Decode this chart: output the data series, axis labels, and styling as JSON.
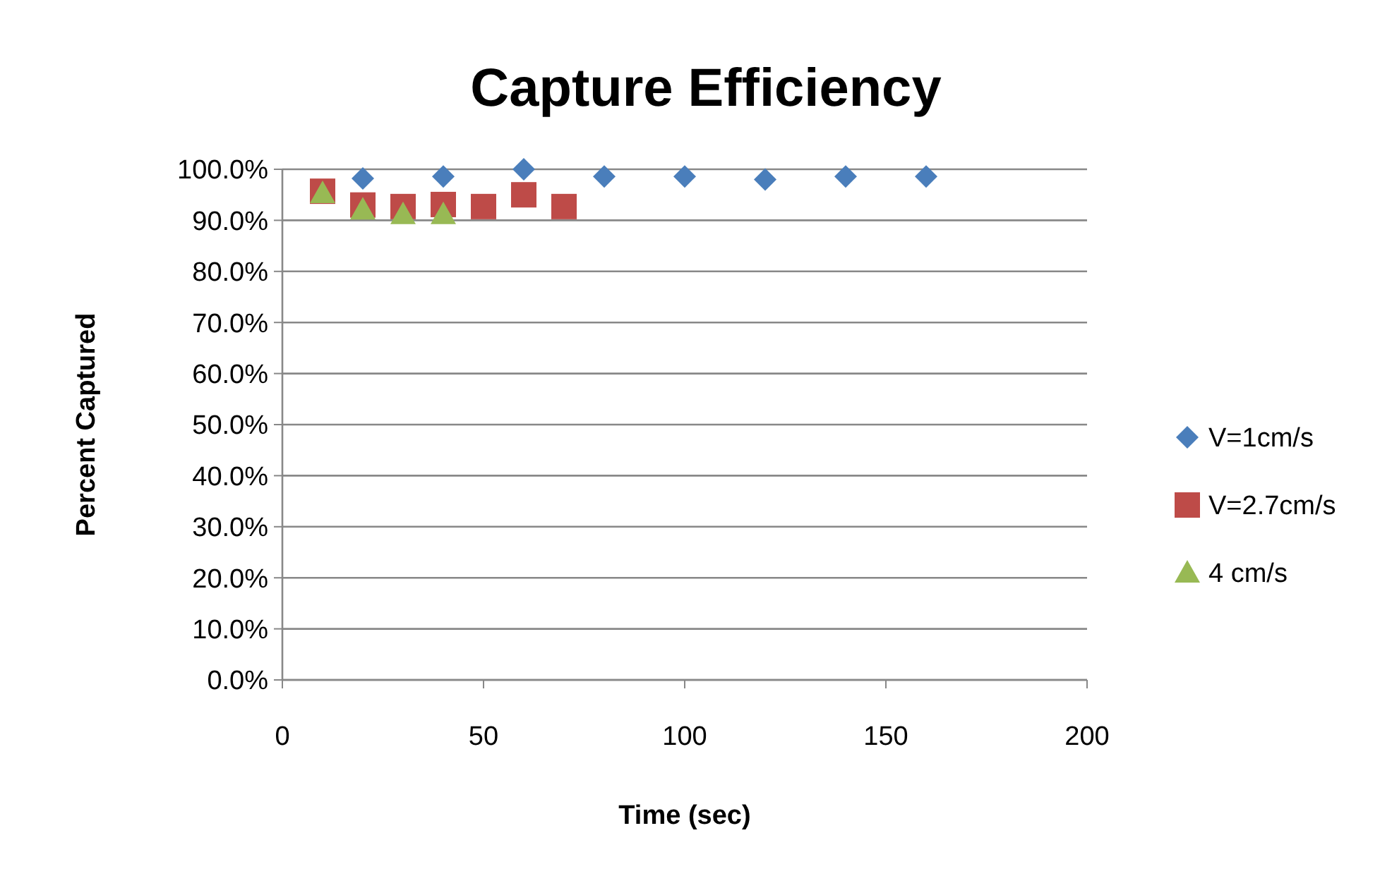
{
  "chart_data": {
    "type": "scatter",
    "title": "Capture Efficiency",
    "xlabel": "Time (sec)",
    "ylabel": "Percent Captured",
    "xlim": [
      0,
      200
    ],
    "xticks": [
      0,
      50,
      100,
      150,
      200
    ],
    "ylim": [
      0,
      100
    ],
    "yticks": [
      {
        "value": 0,
        "label": "0.0%"
      },
      {
        "value": 10,
        "label": "10.0%"
      },
      {
        "value": 20,
        "label": "20.0%"
      },
      {
        "value": 30,
        "label": "30.0%"
      },
      {
        "value": 40,
        "label": "40.0%"
      },
      {
        "value": 50,
        "label": "50.0%"
      },
      {
        "value": 60,
        "label": "60.0%"
      },
      {
        "value": 70,
        "label": "70.0%"
      },
      {
        "value": 80,
        "label": "80.0%"
      },
      {
        "value": 90,
        "label": "90.0%"
      },
      {
        "value": 100,
        "label": "100.0%"
      }
    ],
    "grid": "y",
    "legend": "right",
    "series": [
      {
        "name": "V=1cm/s",
        "color": "#4a7ebb",
        "marker": "diamond",
        "x": [
          20,
          40,
          60,
          80,
          100,
          120,
          140,
          160
        ],
        "values": [
          98.2,
          98.6,
          100,
          98.6,
          98.6,
          98.0,
          98.6,
          98.6
        ]
      },
      {
        "name": "V=2.7cm/s",
        "color": "#be4b48",
        "marker": "square",
        "x": [
          10,
          20,
          30,
          40,
          50,
          60,
          70
        ],
        "values": [
          95.7,
          93.0,
          92.7,
          93.1,
          92.7,
          95.0,
          92.7
        ]
      },
      {
        "name": "4 cm/s",
        "color": "#98b954",
        "marker": "triangle",
        "x": [
          10,
          20,
          30,
          40
        ],
        "values": [
          95.3,
          92.1,
          91.2,
          91.2
        ]
      }
    ]
  }
}
